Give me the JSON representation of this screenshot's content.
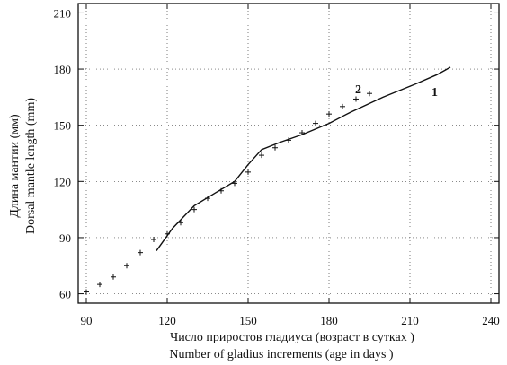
{
  "chart_data": {
    "type": "line",
    "xlabel": [
      "Число приростов гладиуса (возраст в сутках )",
      "Number of gladius increments (age in days )"
    ],
    "ylabel": [
      "Длина мантии (мм)",
      "Dorsal mantle length (mm)"
    ],
    "xlim": [
      87,
      243
    ],
    "ylim": [
      55,
      215
    ],
    "xticks": [
      90,
      120,
      150,
      180,
      210,
      240
    ],
    "yticks": [
      60,
      90,
      120,
      150,
      180,
      210
    ],
    "grid": true,
    "series": [
      {
        "name": "1",
        "style": "solid",
        "x": [
          116,
          122,
          130,
          138,
          145,
          150,
          155,
          162,
          170,
          180,
          188,
          200,
          212,
          220,
          225
        ],
        "y": [
          83,
          95,
          107,
          114,
          120,
          129,
          137,
          141,
          145,
          151,
          157,
          165,
          172,
          177,
          181
        ]
      },
      {
        "name": "2",
        "style": "plus-markers",
        "x": [
          90,
          95,
          100,
          105,
          110,
          115,
          120,
          125,
          130,
          135,
          140,
          145,
          150,
          155,
          160,
          165,
          170,
          175,
          180,
          185,
          190,
          195
        ],
        "y": [
          61,
          65,
          69,
          75,
          82,
          89,
          92,
          98,
          105,
          111,
          115,
          119,
          125,
          134,
          138,
          142,
          146,
          151,
          156,
          160,
          164,
          167
        ]
      }
    ]
  }
}
